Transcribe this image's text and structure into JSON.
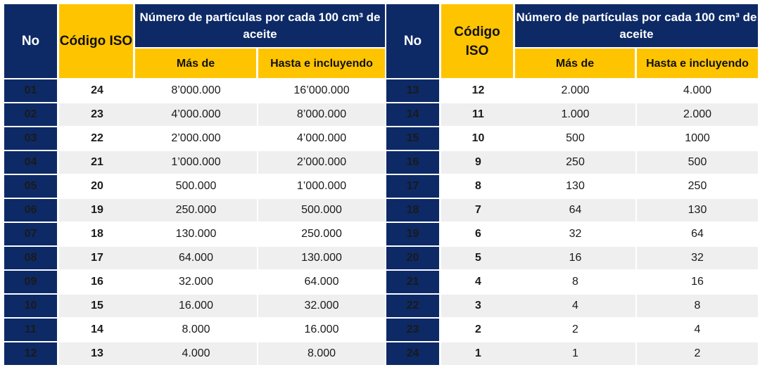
{
  "headers": {
    "no": "No",
    "code": "Código ISO",
    "particles": "Número de partículas por cada 100 cm³ de aceite",
    "more_than": "Más de",
    "up_to": "Hasta e incluyendo"
  },
  "colors": {
    "header_navy": "#0d2a66",
    "header_gold": "#ffc400",
    "row_alt": "#efefef"
  },
  "left_rows": [
    {
      "no": "01",
      "code": "24",
      "more": "8’000.000",
      "upto": "16’000.000"
    },
    {
      "no": "02",
      "code": "23",
      "more": "4’000.000",
      "upto": "8’000.000"
    },
    {
      "no": "03",
      "code": "22",
      "more": "2’000.000",
      "upto": "4’000.000"
    },
    {
      "no": "04",
      "code": "21",
      "more": "1’000.000",
      "upto": "2’000.000"
    },
    {
      "no": "05",
      "code": "20",
      "more": "500.000",
      "upto": "1’000.000"
    },
    {
      "no": "06",
      "code": "19",
      "more": "250.000",
      "upto": "500.000"
    },
    {
      "no": "07",
      "code": "18",
      "more": "130.000",
      "upto": "250.000"
    },
    {
      "no": "08",
      "code": "17",
      "more": "64.000",
      "upto": "130.000"
    },
    {
      "no": "09",
      "code": "16",
      "more": "32.000",
      "upto": "64.000"
    },
    {
      "no": "10",
      "code": "15",
      "more": "16.000",
      "upto": "32.000"
    },
    {
      "no": "11",
      "code": "14",
      "more": "8.000",
      "upto": "16.000"
    },
    {
      "no": "12",
      "code": "13",
      "more": "4.000",
      "upto": "8.000"
    }
  ],
  "right_rows": [
    {
      "no": "13",
      "code": "12",
      "more": "2.000",
      "upto": "4.000"
    },
    {
      "no": "14",
      "code": "11",
      "more": "1.000",
      "upto": "2.000"
    },
    {
      "no": "15",
      "code": "10",
      "more": "500",
      "upto": "1000"
    },
    {
      "no": "16",
      "code": "9",
      "more": "250",
      "upto": "500"
    },
    {
      "no": "17",
      "code": "8",
      "more": "130",
      "upto": "250"
    },
    {
      "no": "18",
      "code": "7",
      "more": "64",
      "upto": "130"
    },
    {
      "no": "19",
      "code": "6",
      "more": "32",
      "upto": "64"
    },
    {
      "no": "20",
      "code": "5",
      "more": "16",
      "upto": "32"
    },
    {
      "no": "21",
      "code": "4",
      "more": "8",
      "upto": "16"
    },
    {
      "no": "22",
      "code": "3",
      "more": "4",
      "upto": "8"
    },
    {
      "no": "23",
      "code": "2",
      "more": "2",
      "upto": "4"
    },
    {
      "no": "24",
      "code": "1",
      "more": "1",
      "upto": "2"
    }
  ]
}
